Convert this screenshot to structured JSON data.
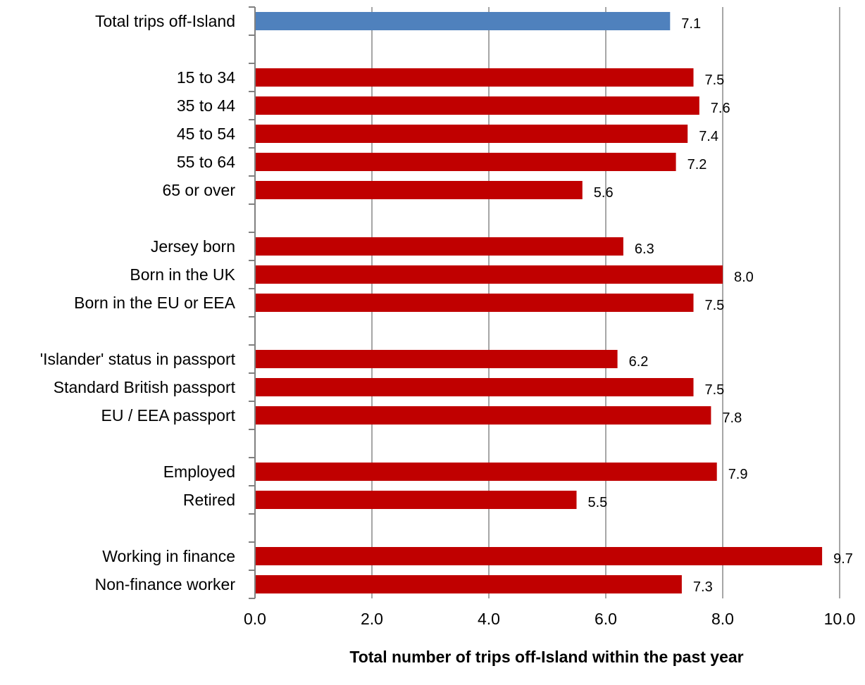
{
  "chart_data": {
    "type": "bar",
    "orientation": "horizontal",
    "xlabel": "Total number of trips off-Island within the past year",
    "xlim": [
      0,
      10
    ],
    "xticks": [
      "0.0",
      "2.0",
      "4.0",
      "6.0",
      "8.0",
      "10.0"
    ],
    "grid": true,
    "legend": "none",
    "colors": {
      "total": "#4F81BD",
      "group": "#C00000",
      "grid": "#A6A6A6",
      "axis": "#808080",
      "text": "#000000"
    },
    "rows": [
      {
        "label": "Total trips off-Island",
        "value": 7.1,
        "value_label": "7.1",
        "color": "total"
      },
      {
        "label": "",
        "value": null,
        "value_label": ""
      },
      {
        "label": "15 to 34",
        "value": 7.5,
        "value_label": "7.5",
        "color": "group"
      },
      {
        "label": "35 to 44",
        "value": 7.6,
        "value_label": "7.6",
        "color": "group"
      },
      {
        "label": "45 to 54",
        "value": 7.4,
        "value_label": "7.4",
        "color": "group"
      },
      {
        "label": "55 to 64",
        "value": 7.2,
        "value_label": "7.2",
        "color": "group"
      },
      {
        "label": "65 or over",
        "value": 5.6,
        "value_label": "5.6",
        "color": "group"
      },
      {
        "label": "",
        "value": null,
        "value_label": ""
      },
      {
        "label": "Jersey born",
        "value": 6.3,
        "value_label": "6.3",
        "color": "group"
      },
      {
        "label": "Born in the UK",
        "value": 8.0,
        "value_label": "8.0",
        "color": "group"
      },
      {
        "label": "Born in the EU or EEA",
        "value": 7.5,
        "value_label": "7.5",
        "color": "group"
      },
      {
        "label": "",
        "value": null,
        "value_label": ""
      },
      {
        "label": "'Islander' status in passport",
        "value": 6.2,
        "value_label": "6.2",
        "color": "group"
      },
      {
        "label": "Standard British passport",
        "value": 7.5,
        "value_label": "7.5",
        "color": "group"
      },
      {
        "label": "EU / EEA passport",
        "value": 7.8,
        "value_label": "7.8",
        "color": "group"
      },
      {
        "label": "",
        "value": null,
        "value_label": ""
      },
      {
        "label": "Employed",
        "value": 7.9,
        "value_label": "7.9",
        "color": "group"
      },
      {
        "label": "Retired",
        "value": 5.5,
        "value_label": "5.5",
        "color": "group"
      },
      {
        "label": "",
        "value": null,
        "value_label": ""
      },
      {
        "label": "Working in finance",
        "value": 9.7,
        "value_label": "9.7",
        "color": "group"
      },
      {
        "label": "Non-finance worker",
        "value": 7.3,
        "value_label": "7.3",
        "color": "group"
      }
    ]
  }
}
